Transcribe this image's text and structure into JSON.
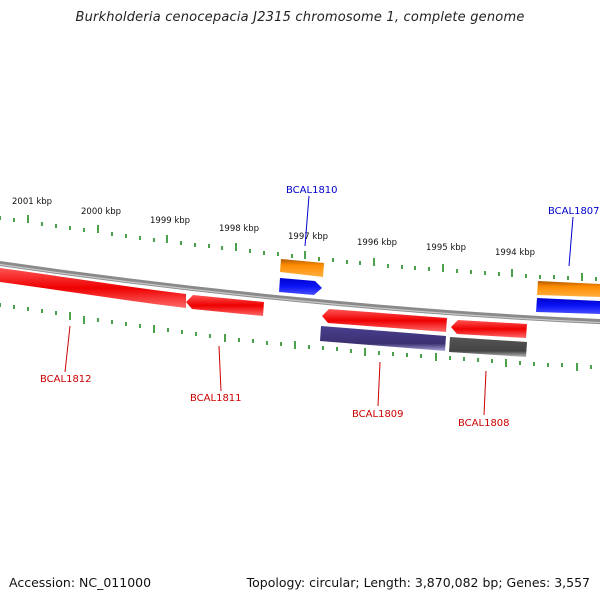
{
  "title": "Burkholderia cenocepacia J2315 chromosome 1, complete genome",
  "footer": {
    "accession": "Accession: NC_011000",
    "summary": "Topology: circular; Length: 3,870,082 bp; Genes: 3,557"
  },
  "kbp_labels": [
    "2001 kbp",
    "2000 kbp",
    "1999 kbp",
    "1998 kbp",
    "1997 kbp",
    "1996 kbp",
    "1995 kbp",
    "1994 kbp"
  ],
  "genes": [
    {
      "name": "BCAL1812",
      "strand": "reverse",
      "color": "#dd0000"
    },
    {
      "name": "BCAL1811",
      "strand": "reverse",
      "color": "#dd0000"
    },
    {
      "name": "BCAL1810",
      "strand": "forward",
      "color": "#0000cc"
    },
    {
      "name": "BCAL1809",
      "strand": "reverse",
      "color": "#dd0000"
    },
    {
      "name": "BCAL1808",
      "strand": "reverse",
      "color": "#dd0000"
    },
    {
      "name": "BCAL1807",
      "strand": "forward",
      "color": "#0000cc"
    }
  ],
  "colors": {
    "cds_reverse": "#ff1a1a",
    "cds_forward": "#0a14f0",
    "rna_orange": "#ff8c00",
    "purple": "#4a3f8f",
    "gray": "#555555",
    "backbone": "#888888",
    "ticks": "#1e8a1e"
  }
}
